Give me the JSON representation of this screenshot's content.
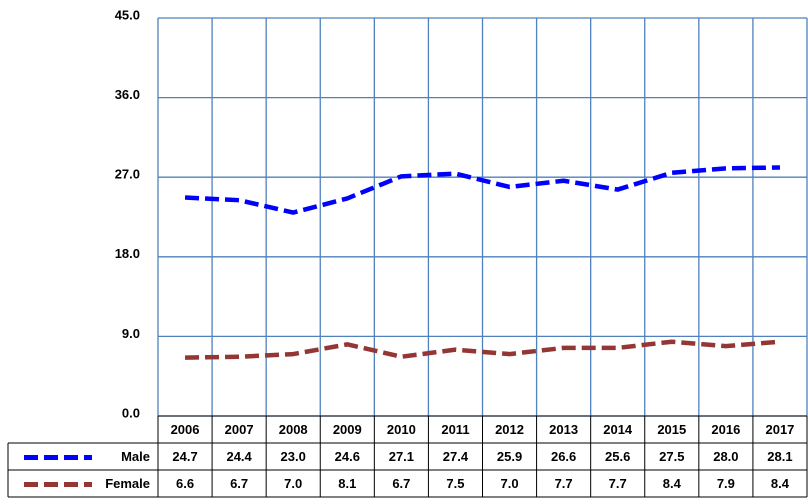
{
  "chart_data": {
    "type": "line",
    "categories": [
      "2006",
      "2007",
      "2008",
      "2009",
      "2010",
      "2011",
      "2012",
      "2013",
      "2014",
      "2015",
      "2016",
      "2017"
    ],
    "series": [
      {
        "name": "Male",
        "color": "#0000ff",
        "values": [
          24.7,
          24.4,
          23.0,
          24.6,
          27.1,
          27.4,
          25.9,
          26.6,
          25.6,
          27.5,
          28.0,
          28.1
        ],
        "value_labels": [
          "24.7",
          "24.4",
          "23.0",
          "24.6",
          "27.1",
          "27.4",
          "25.9",
          "26.6",
          "25.6",
          "27.5",
          "28.0",
          "28.1"
        ]
      },
      {
        "name": "Female",
        "color": "#943634",
        "values": [
          6.6,
          6.7,
          7.0,
          8.1,
          6.7,
          7.5,
          7.0,
          7.7,
          7.7,
          8.4,
          7.9,
          8.4
        ],
        "value_labels": [
          "6.6",
          "6.7",
          "7.0",
          "8.1",
          "6.7",
          "7.5",
          "7.0",
          "7.7",
          "7.7",
          "8.4",
          "7.9",
          "8.4"
        ]
      }
    ],
    "ylim": [
      0,
      45
    ],
    "yticks": [
      {
        "value": 0,
        "label": "0.0"
      },
      {
        "value": 9,
        "label": "9.0"
      },
      {
        "value": 18,
        "label": "18.0"
      },
      {
        "value": 27,
        "label": "27.0"
      },
      {
        "value": 36,
        "label": "36.0"
      },
      {
        "value": 45,
        "label": "45.0"
      }
    ],
    "grid": true
  }
}
